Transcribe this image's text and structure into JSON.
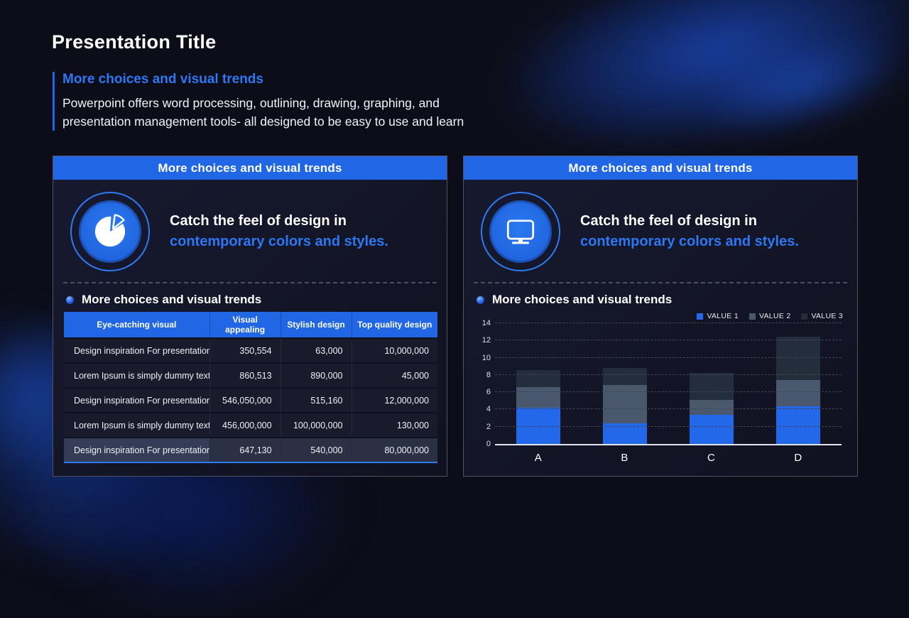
{
  "colors": {
    "accent_blue": "#2166e4",
    "text_blue": "#2e77f2",
    "panel_border": "#4c5268",
    "highlight_row_bg": "#2b3145"
  },
  "slide": {
    "title": "Presentation Title",
    "subtitle": "More choices and visual trends",
    "body_line1": "Powerpoint offers word processing, outlining, drawing, graphing, and",
    "body_line2": "presentation management tools- all designed to be easy to use and learn"
  },
  "left_panel": {
    "header": "More choices and visual trends",
    "icon": "pie-chart-icon",
    "feature_line1": "Catch the feel of design in",
    "feature_line2": "contemporary colors and styles.",
    "section_title": "More choices and visual trends",
    "table": {
      "headers": [
        "Eye-catching visual",
        "Visual appealing",
        "Stylish design",
        "Top quality design"
      ],
      "rows": [
        [
          "Design inspiration For presentation",
          "350,554",
          "63,000",
          "10,000,000"
        ],
        [
          "Lorem Ipsum is simply dummy text",
          "860,513",
          "890,000",
          "45,000"
        ],
        [
          "Design inspiration For presentation",
          "546,050,000",
          "515,160",
          "12,000,000"
        ],
        [
          "Lorem Ipsum is simply dummy text",
          "456,000,000",
          "100,000,000",
          "130,000"
        ],
        [
          "Design inspiration For presentation",
          "647,130",
          "540,000",
          "80,000,000"
        ]
      ],
      "highlighted_row": 4
    }
  },
  "right_panel": {
    "header": "More choices and visual trends",
    "icon": "monitor-icon",
    "feature_line1": "Catch the feel of design in",
    "feature_line2": "contemporary colors and styles.",
    "section_title": "More choices and visual trends"
  },
  "chart_data": {
    "type": "bar",
    "stacked": true,
    "categories": [
      "A",
      "B",
      "C",
      "D"
    ],
    "series": [
      {
        "name": "VALUE 1",
        "color": "#2268e8",
        "values": [
          4.2,
          2.4,
          3.4,
          4.4
        ]
      },
      {
        "name": "VALUE 2",
        "color": "#49586c",
        "values": [
          2.4,
          4.4,
          1.7,
          3.0
        ]
      },
      {
        "name": "VALUE 3",
        "color": "#232d3b",
        "values": [
          2.0,
          2.0,
          3.1,
          5.0
        ]
      }
    ],
    "title": "",
    "xlabel": "",
    "ylabel": "",
    "ylim": [
      0,
      14
    ],
    "ytick_step": 2,
    "grid": "horizontal-dashed",
    "legend_position": "top-right"
  }
}
